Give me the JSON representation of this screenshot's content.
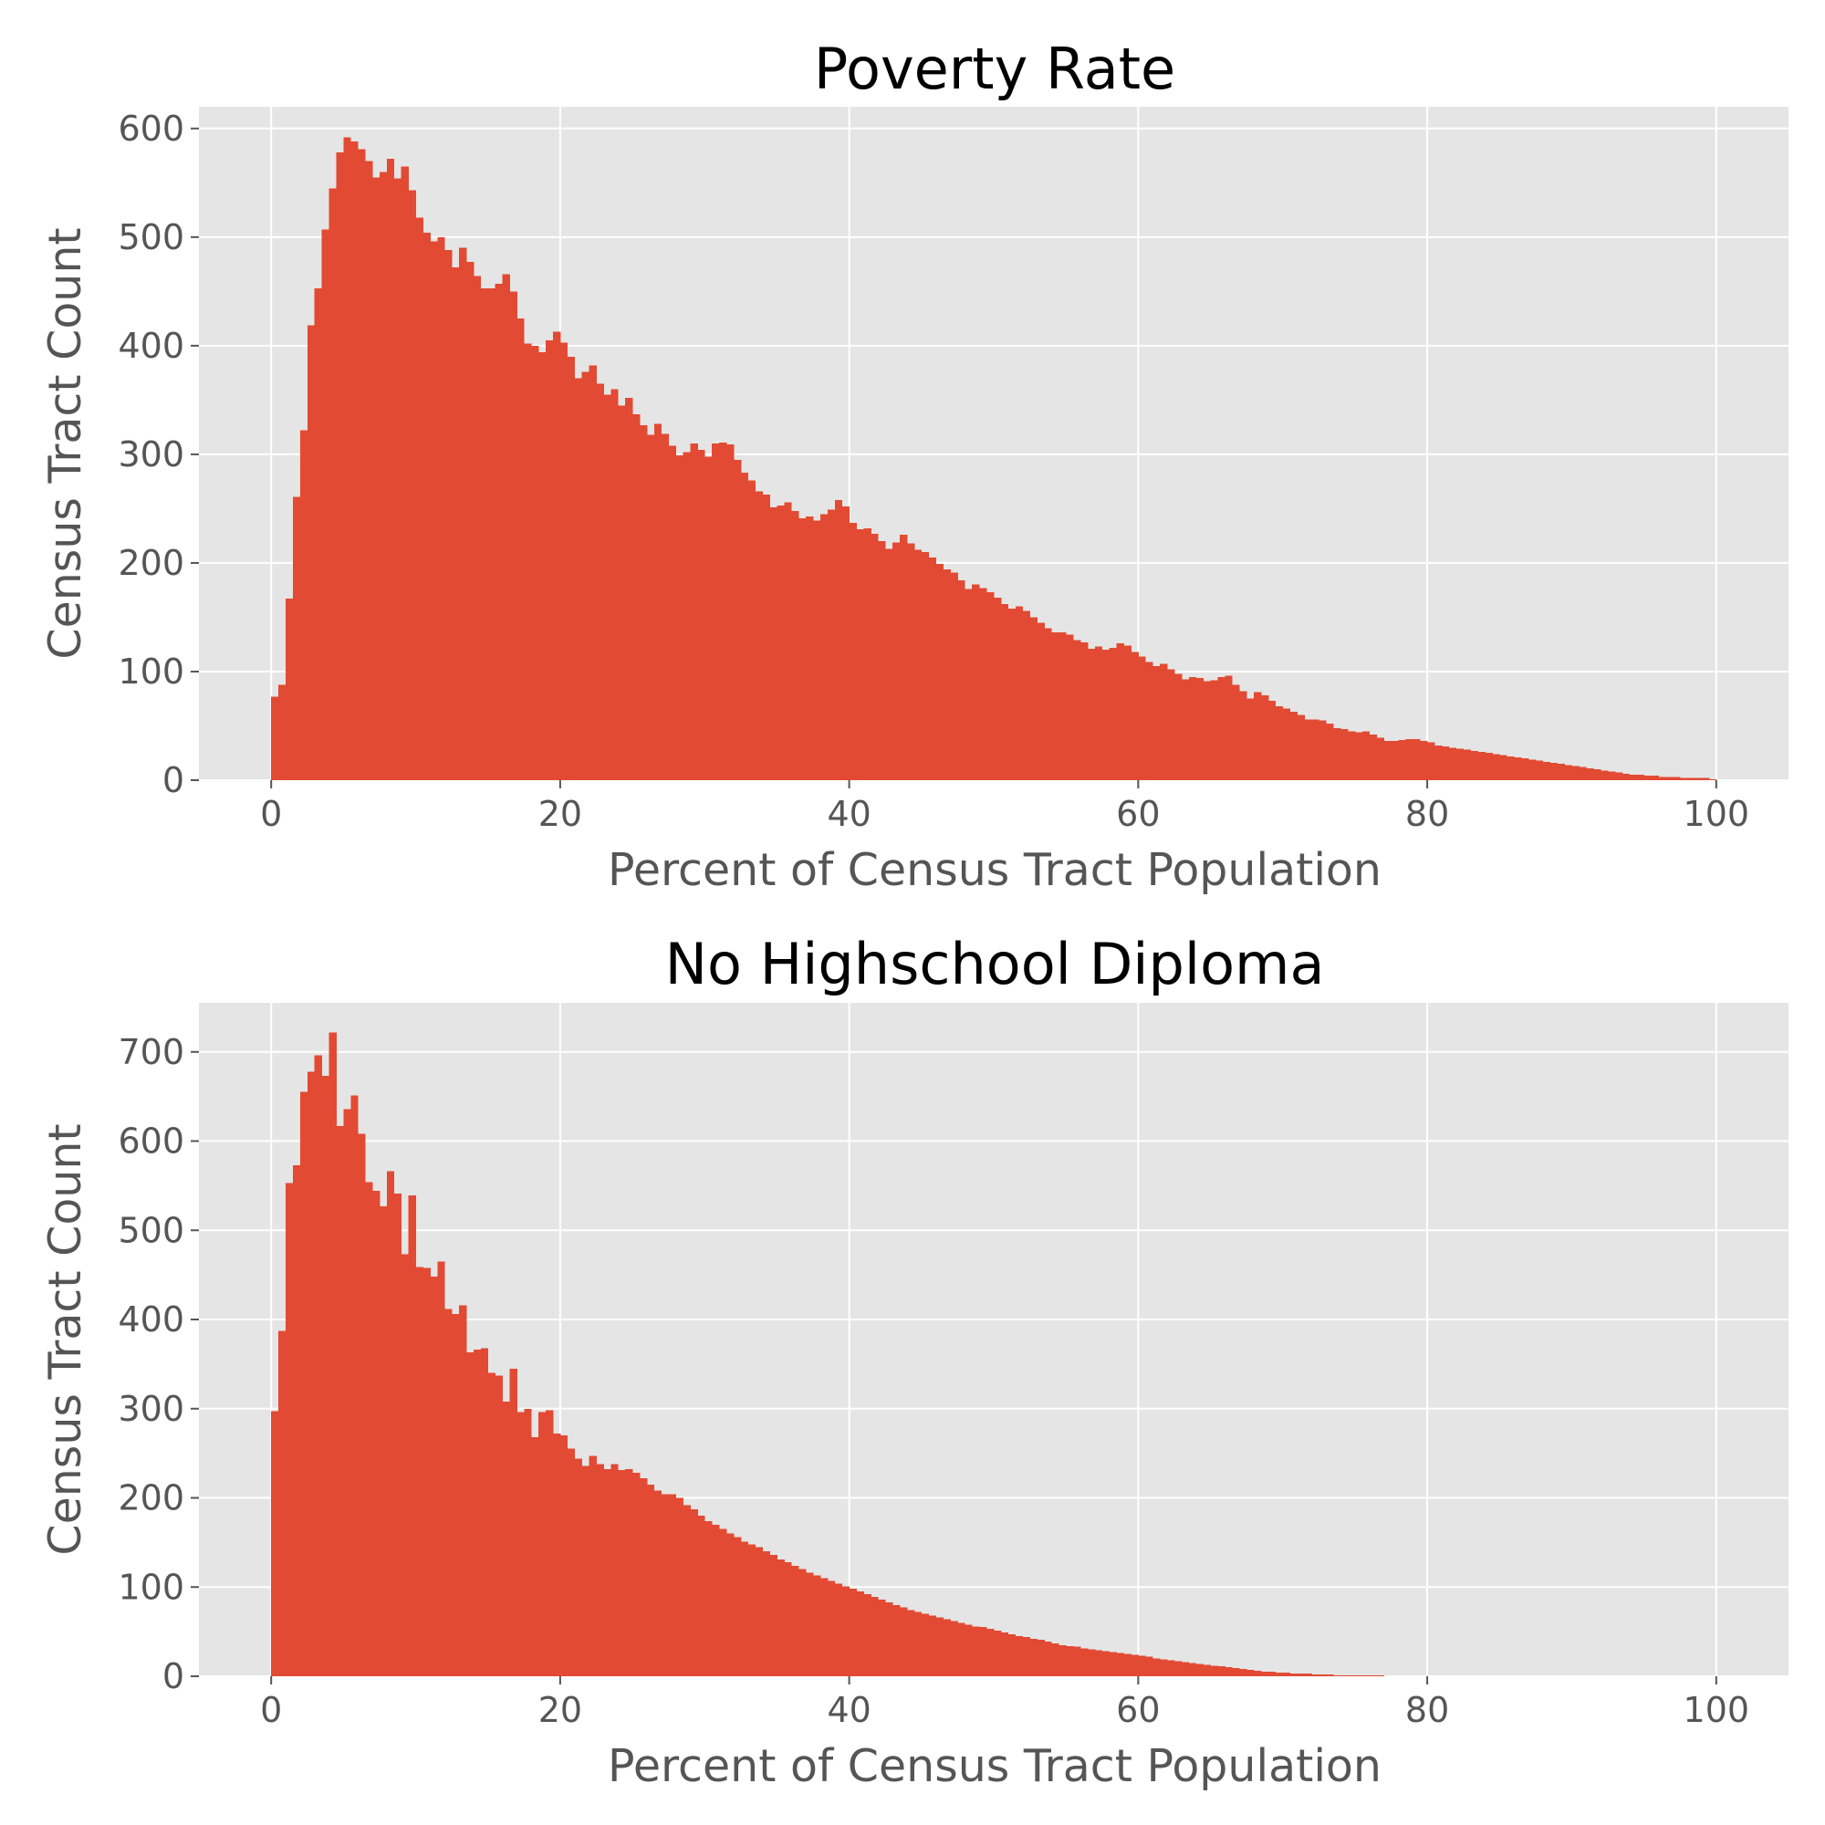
{
  "colors": {
    "bar": "#e24a33",
    "panel": "#e5e5e5",
    "grid": "#ffffff",
    "text": "#555555",
    "title": "#000000"
  },
  "chart_data": [
    {
      "type": "histogram",
      "title": "Poverty Rate",
      "xlabel": "Percent of Census Tract Population",
      "ylabel": "Census Tract Count",
      "xlim": [
        -5,
        105
      ],
      "ylim": [
        0,
        620
      ],
      "xticks": [
        0,
        20,
        40,
        60,
        80,
        100
      ],
      "yticks": [
        0,
        100,
        200,
        300,
        400,
        500,
        600
      ],
      "grid": true,
      "bin_range": [
        0,
        100
      ],
      "bins": 200,
      "counts": [
        77,
        88,
        167,
        261,
        322,
        419,
        453,
        507,
        545,
        578,
        592,
        588,
        581,
        570,
        555,
        560,
        572,
        554,
        565,
        543,
        518,
        504,
        496,
        500,
        488,
        472,
        490,
        477,
        464,
        453,
        453,
        457,
        466,
        450,
        425,
        402,
        400,
        394,
        405,
        413,
        403,
        390,
        370,
        376,
        382,
        365,
        355,
        360,
        345,
        352,
        337,
        327,
        318,
        328,
        319,
        308,
        299,
        302,
        310,
        304,
        298,
        310,
        311,
        309,
        295,
        283,
        276,
        266,
        263,
        251,
        253,
        256,
        248,
        241,
        243,
        239,
        245,
        249,
        258,
        252,
        237,
        231,
        232,
        227,
        220,
        213,
        219,
        226,
        218,
        212,
        210,
        205,
        199,
        194,
        191,
        184,
        176,
        180,
        177,
        173,
        168,
        162,
        158,
        160,
        156,
        150,
        145,
        140,
        136,
        136,
        134,
        129,
        127,
        121,
        123,
        120,
        122,
        126,
        124,
        118,
        114,
        109,
        105,
        107,
        102,
        98,
        93,
        95,
        94,
        91,
        92,
        95,
        96,
        88,
        82,
        75,
        81,
        78,
        73,
        68,
        66,
        63,
        60,
        56,
        56,
        55,
        52,
        48,
        47,
        45,
        44,
        45,
        42,
        39,
        36,
        36,
        37,
        38,
        38,
        36,
        35,
        32,
        31,
        30,
        29,
        28,
        27,
        26,
        25,
        24,
        23,
        22,
        21,
        20,
        19,
        18,
        17,
        16,
        15,
        14,
        13,
        12,
        11,
        10,
        9,
        8,
        7,
        6,
        5,
        5,
        4,
        4,
        3,
        3,
        3,
        2,
        2,
        2,
        2,
        1
      ]
    },
    {
      "type": "histogram",
      "title": "No Highschool Diploma",
      "xlabel": "Percent of Census Tract Population",
      "ylabel": "Census Tract Count",
      "xlim": [
        -5,
        105
      ],
      "ylim": [
        0,
        755
      ],
      "xticks": [
        0,
        20,
        40,
        60,
        80,
        100
      ],
      "yticks": [
        0,
        100,
        200,
        300,
        400,
        500,
        600,
        700
      ],
      "grid": true,
      "bin_range": [
        0,
        100
      ],
      "bins": 200,
      "counts": [
        297,
        387,
        553,
        573,
        655,
        678,
        696,
        673,
        722,
        617,
        636,
        651,
        608,
        554,
        544,
        527,
        566,
        541,
        473,
        539,
        459,
        458,
        448,
        465,
        412,
        406,
        416,
        363,
        366,
        368,
        340,
        337,
        308,
        345,
        296,
        300,
        268,
        296,
        298,
        272,
        270,
        255,
        244,
        236,
        247,
        238,
        232,
        238,
        231,
        232,
        228,
        222,
        215,
        208,
        204,
        204,
        200,
        192,
        187,
        180,
        174,
        170,
        165,
        160,
        156,
        151,
        148,
        145,
        140,
        136,
        131,
        128,
        124,
        120,
        116,
        113,
        110,
        107,
        104,
        101,
        98,
        95,
        92,
        89,
        86,
        83,
        80,
        77,
        74,
        72,
        70,
        68,
        66,
        64,
        62,
        60,
        58,
        56,
        55,
        53,
        51,
        49,
        47,
        45,
        44,
        42,
        41,
        39,
        37,
        35,
        34,
        33,
        31,
        30,
        29,
        28,
        27,
        26,
        25,
        24,
        23,
        22,
        20,
        19,
        18,
        17,
        16,
        15,
        14,
        13,
        12,
        11,
        10,
        9,
        8,
        7,
        6,
        5,
        5,
        4,
        4,
        3,
        3,
        3,
        2,
        2,
        2,
        1,
        1,
        1,
        1,
        1,
        1,
        1,
        0,
        0,
        0,
        0,
        0,
        0,
        0,
        0,
        0,
        0,
        0,
        0,
        0,
        0,
        0,
        0,
        0,
        0,
        0,
        0,
        0,
        0,
        0,
        0,
        0,
        0,
        0,
        0,
        0,
        0,
        0,
        0,
        0,
        0,
        0,
        0,
        0,
        0,
        0,
        0,
        0,
        0,
        0,
        0,
        0,
        0
      ]
    }
  ]
}
